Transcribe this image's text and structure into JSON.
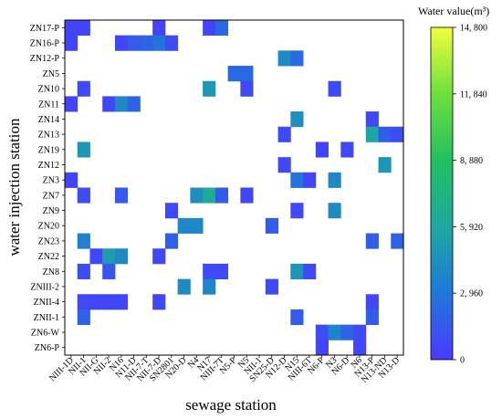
{
  "chart_data": {
    "type": "heatmap",
    "xlabel": "sewage station",
    "ylabel": "water injection station",
    "x_categories": [
      "NIII-1D",
      "NII-1",
      "NII-G",
      "NII-2",
      "N16",
      "N11-D",
      "NII-7-T",
      "NII-7-D",
      "SN2801",
      "N20-D",
      "N4",
      "N17",
      "NIII-7T",
      "N5-P",
      "N5",
      "NII-1",
      "SN25-D",
      "N12-D",
      "N15",
      "NIII-6T",
      "N6-P",
      "N3",
      "N6-D",
      "N6",
      "N13-P",
      "N13-ND",
      "N13-D"
    ],
    "y_categories": [
      "ZN17-P",
      "ZN16-P",
      "ZN12-P",
      "ZN5",
      "ZN10",
      "ZN11",
      "ZN14",
      "ZN13",
      "ZN19",
      "ZN12",
      "ZN3",
      "ZN7",
      "ZN9",
      "ZN20",
      "ZN23",
      "ZN22",
      "ZN8",
      "ZNIII-2",
      "ZNII-4",
      "ZNII-1",
      "ZN6-W",
      "ZN6-P"
    ],
    "colorbar": {
      "title": "Water value(m³)",
      "min": 0,
      "max": 14800,
      "ticks": [
        "0",
        "2, 960",
        "5, 920",
        "8, 880",
        "11, 840",
        "14, 800"
      ],
      "colors": [
        "#4a3aff",
        "#1f78d8",
        "#1ea8a0",
        "#22c060",
        "#6ee03c",
        "#f0ff3c"
      ]
    },
    "cells": [
      [
        "ZN17-P",
        "NIII-1D",
        500
      ],
      [
        "ZN17-P",
        "NII-7-D",
        500
      ],
      [
        "ZN17-P",
        "N17",
        600
      ],
      [
        "ZN17-P",
        "NIII-7T",
        2100
      ],
      [
        "ZN17-P",
        "NII-1",
        500
      ],
      [
        "ZN16-P",
        "NIII-1D",
        500
      ],
      [
        "ZN16-P",
        "N16",
        600
      ],
      [
        "ZN16-P",
        "N11-D",
        1600
      ],
      [
        "ZN16-P",
        "NII-7-T",
        2000
      ],
      [
        "ZN16-P",
        "NII-7-D",
        2800
      ],
      [
        "ZN16-P",
        "SN2801",
        800
      ],
      [
        "ZN12-P",
        "N12-D",
        4000
      ],
      [
        "ZN12-P",
        "N15",
        2300
      ],
      [
        "ZN5",
        "N5-P",
        2200
      ],
      [
        "ZN5",
        "N5",
        2200
      ],
      [
        "ZN10",
        "NII-1",
        700
      ],
      [
        "ZN10",
        "N17",
        4800
      ],
      [
        "ZN10",
        "N5",
        700
      ],
      [
        "ZN10",
        "N3",
        700
      ],
      [
        "ZN11",
        "NIII-1D",
        500
      ],
      [
        "ZN11",
        "NII-2",
        600
      ],
      [
        "ZN11",
        "N16",
        3800
      ],
      [
        "ZN11",
        "N11-D",
        2000
      ],
      [
        "ZN14",
        "N15",
        4300
      ],
      [
        "ZN14",
        "N13-P",
        700
      ],
      [
        "ZN13",
        "N12-D",
        700
      ],
      [
        "ZN13",
        "N13-P",
        5800
      ],
      [
        "ZN13",
        "N13-ND",
        1700
      ],
      [
        "ZN13",
        "N13-D",
        900
      ],
      [
        "ZN19",
        "NII-1",
        4800
      ],
      [
        "ZN19",
        "N6-P",
        500
      ],
      [
        "ZN19",
        "N6-D",
        700
      ],
      [
        "ZN12",
        "N12-D",
        700
      ],
      [
        "ZN12",
        "N13-ND",
        4700
      ],
      [
        "ZN3",
        "NIII-1D",
        500
      ],
      [
        "ZN3",
        "N15",
        2800
      ],
      [
        "ZN3",
        "NIII-6T",
        600
      ],
      [
        "ZN3",
        "N3",
        3800
      ],
      [
        "ZN7",
        "NII-1",
        900
      ],
      [
        "ZN7",
        "N16",
        1500
      ],
      [
        "ZN7",
        "N4",
        4300
      ],
      [
        "ZN7",
        "N17",
        6300
      ],
      [
        "ZN7",
        "NIII-7T",
        1500
      ],
      [
        "ZN7",
        "N5",
        600
      ],
      [
        "ZN9",
        "SN2801",
        700
      ],
      [
        "ZN9",
        "N15",
        700
      ],
      [
        "ZN9",
        "N3",
        4200
      ],
      [
        "ZN20",
        "N20-D",
        3800
      ],
      [
        "ZN20",
        "N4",
        3800
      ],
      [
        "ZN20",
        "SN25-D",
        1600
      ],
      [
        "ZN23",
        "SN2801",
        1700
      ],
      [
        "ZN23",
        "NII-1",
        3500
      ],
      [
        "ZN23",
        "N13-P",
        1700
      ],
      [
        "ZN23",
        "N13-D",
        2000
      ],
      [
        "ZN22",
        "NII-G",
        600
      ],
      [
        "ZN22",
        "NII-2",
        5200
      ],
      [
        "ZN22",
        "N16",
        4000
      ],
      [
        "ZN22",
        "NII-7-D",
        600
      ],
      [
        "ZN8",
        "NII-1",
        900
      ],
      [
        "ZN8",
        "NII-2",
        1400
      ],
      [
        "ZN8",
        "N17",
        700
      ],
      [
        "ZN8",
        "NIII-7T",
        700
      ],
      [
        "ZN8",
        "N15",
        4700
      ],
      [
        "ZN8",
        "NIII-6T",
        700
      ],
      [
        "ZNIII-2",
        "N20-D",
        4000
      ],
      [
        "ZNIII-2",
        "N17",
        3700
      ],
      [
        "ZNIII-2",
        "SN25-D",
        700
      ],
      [
        "ZNII-4",
        "NII-G",
        600
      ],
      [
        "ZNII-4",
        "NII-2",
        600
      ],
      [
        "ZNII-4",
        "N16",
        600
      ],
      [
        "ZNII-4",
        "NII-7-D",
        600
      ],
      [
        "ZNII-4",
        "NII-1",
        700
      ],
      [
        "ZNII-4",
        "N13-P",
        600
      ],
      [
        "ZNII-1",
        "NII-1",
        1800
      ],
      [
        "ZNII-1",
        "N15",
        1600
      ],
      [
        "ZNII-1",
        "N13-P",
        1700
      ],
      [
        "ZN6-W",
        "N6-P",
        900
      ],
      [
        "ZN6-W",
        "N3",
        3600
      ],
      [
        "ZN6-W",
        "N6-D",
        2000
      ],
      [
        "ZN6-W",
        "N6",
        700
      ],
      [
        "ZN6-P",
        "N6-P",
        500
      ],
      [
        "ZN6-P",
        "N6",
        600
      ]
    ]
  }
}
